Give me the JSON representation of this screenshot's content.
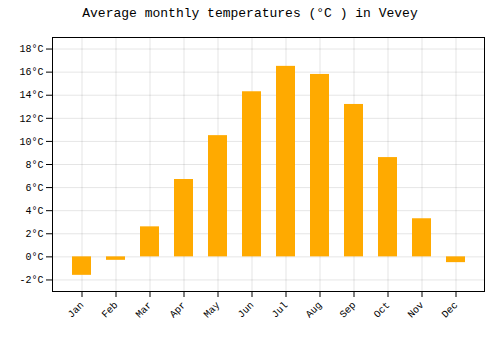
{
  "chart_data": {
    "type": "bar",
    "title": "Average monthly temperatures (°C ) in Vevey",
    "categories": [
      "Jan",
      "Feb",
      "Mar",
      "Apr",
      "May",
      "Jun",
      "Jul",
      "Aug",
      "Sep",
      "Oct",
      "Nov",
      "Dec"
    ],
    "values": [
      -1.6,
      -0.3,
      2.6,
      6.7,
      10.5,
      14.3,
      16.5,
      15.8,
      13.2,
      8.6,
      3.3,
      -0.5
    ],
    "color": "#FFAA00",
    "ylim": [
      -3,
      19
    ],
    "yticks": [
      {
        "value": -2,
        "label": "-2°C"
      },
      {
        "value": 0,
        "label": "0°C"
      },
      {
        "value": 2,
        "label": "2°C"
      },
      {
        "value": 4,
        "label": "4°C"
      },
      {
        "value": 6,
        "label": "6°C"
      },
      {
        "value": 8,
        "label": "8°C"
      },
      {
        "value": 10,
        "label": "10°C"
      },
      {
        "value": 12,
        "label": "12°C"
      },
      {
        "value": 14,
        "label": "14°C"
      },
      {
        "value": 16,
        "label": "16°C"
      },
      {
        "value": 18,
        "label": "18°C"
      }
    ],
    "grid": true
  }
}
